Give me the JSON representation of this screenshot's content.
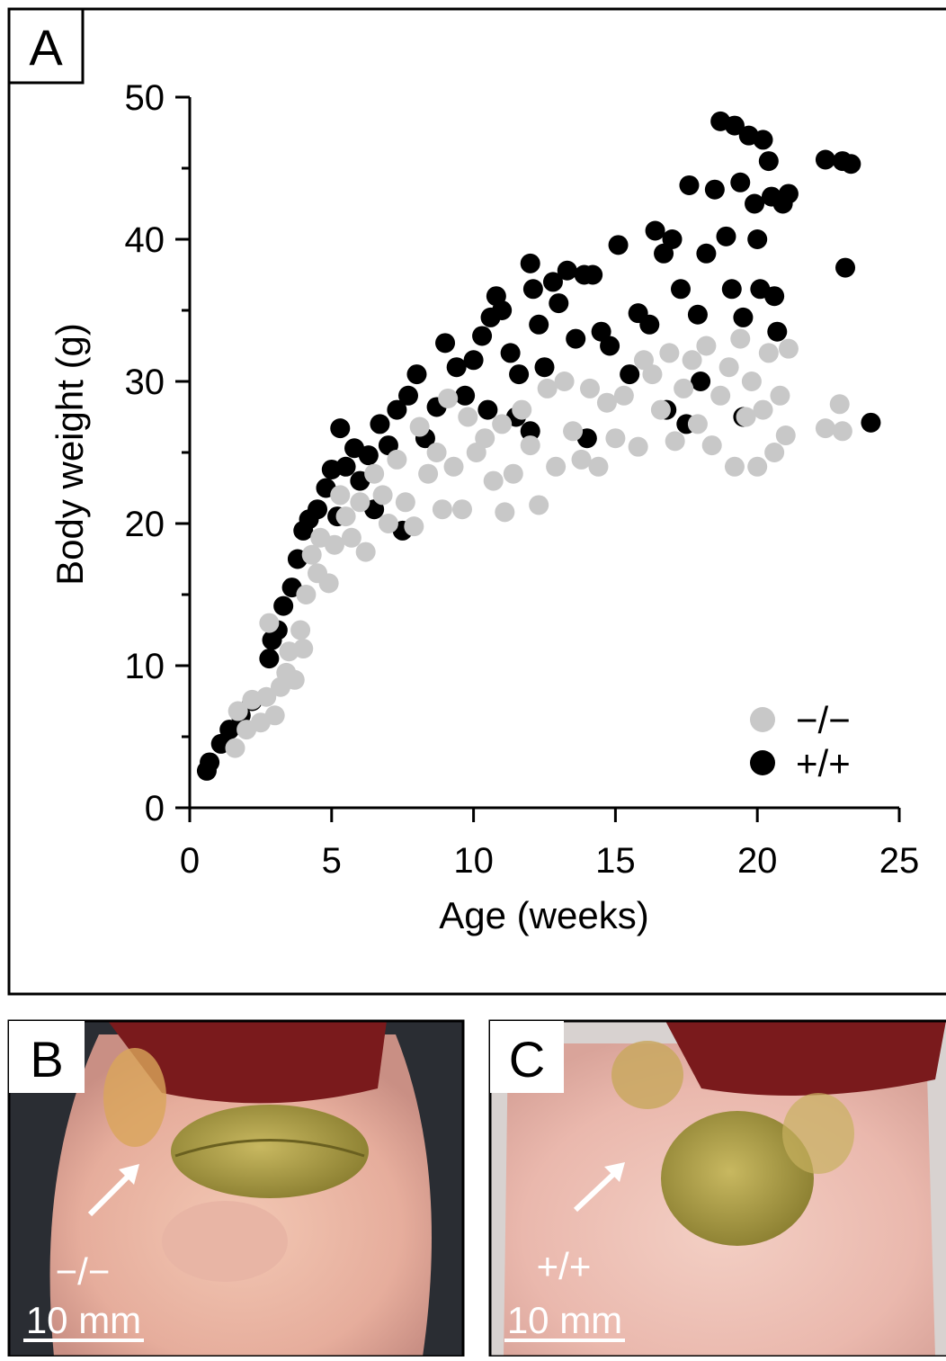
{
  "chart_data": {
    "type": "scatter",
    "panel_label": "A",
    "x_label": "Age (weeks)",
    "y_label": "Body weight (g)",
    "xlim": [
      0,
      25
    ],
    "xticks": [
      0,
      5,
      10,
      15,
      20,
      25
    ],
    "ylim": [
      0,
      50
    ],
    "yticks": [
      0,
      10,
      20,
      30,
      40,
      50
    ],
    "yminorticks": [
      5,
      15,
      25,
      35,
      45
    ],
    "legend": "lower right",
    "series": [
      {
        "name": "−/−",
        "color": "#c8c8c8",
        "x": [
          1.6,
          1.7,
          2.0,
          2.2,
          2.5,
          2.7,
          2.8,
          3.0,
          3.2,
          3.4,
          3.5,
          3.7,
          3.9,
          4.0,
          4.1,
          4.3,
          4.5,
          4.6,
          4.9,
          5.1,
          5.3,
          5.5,
          5.7,
          6.0,
          6.2,
          6.5,
          6.8,
          7.0,
          7.3,
          7.6,
          7.9,
          8.1,
          8.4,
          8.7,
          8.9,
          9.1,
          9.3,
          9.6,
          9.8,
          10.1,
          10.4,
          10.7,
          11.0,
          11.1,
          11.4,
          11.7,
          12.0,
          12.3,
          12.6,
          12.9,
          13.2,
          13.5,
          13.8,
          14.1,
          14.4,
          14.7,
          15.0,
          15.3,
          15.8,
          16.0,
          16.3,
          16.6,
          16.9,
          17.1,
          17.4,
          17.7,
          17.9,
          18.2,
          18.4,
          18.7,
          19.0,
          19.2,
          19.4,
          19.6,
          19.8,
          20.0,
          20.2,
          20.4,
          20.6,
          20.8,
          21.0,
          21.1,
          22.4,
          22.9,
          23.0
        ],
        "values": [
          4.2,
          6.8,
          5.5,
          7.6,
          6.0,
          7.8,
          13.0,
          6.5,
          8.5,
          9.5,
          11.0,
          9.0,
          12.5,
          11.2,
          15.0,
          17.8,
          16.5,
          19.0,
          15.8,
          18.5,
          22.0,
          20.5,
          19.0,
          21.5,
          18.0,
          23.5,
          22.0,
          20.0,
          24.5,
          21.5,
          19.8,
          26.8,
          23.5,
          25.0,
          21.0,
          28.8,
          24.0,
          21.0,
          27.5,
          25.0,
          26.0,
          23.0,
          27.0,
          20.8,
          23.5,
          28.0,
          25.5,
          21.3,
          29.5,
          24.0,
          30.0,
          26.5,
          24.5,
          29.5,
          24.0,
          28.5,
          26.0,
          29.0,
          25.4,
          31.5,
          30.5,
          28.0,
          32.0,
          25.8,
          29.5,
          31.5,
          27.0,
          32.5,
          25.5,
          29.0,
          31.0,
          24.0,
          33.0,
          27.5,
          30.0,
          24.0,
          28.0,
          32.0,
          25.0,
          29.0,
          26.2,
          32.3,
          26.7,
          28.4,
          26.5
        ]
      },
      {
        "name": "+/+",
        "color": "#000000",
        "x": [
          0.6,
          0.7,
          1.1,
          1.4,
          1.8,
          2.2,
          2.8,
          2.9,
          3.1,
          3.3,
          3.6,
          3.8,
          4.0,
          4.2,
          4.5,
          4.8,
          5.0,
          5.3,
          5.5,
          5.8,
          6.0,
          6.3,
          6.7,
          7.0,
          7.3,
          7.7,
          8.0,
          8.3,
          8.7,
          9.0,
          9.4,
          9.7,
          10.0,
          10.3,
          10.6,
          10.8,
          11.0,
          11.3,
          11.6,
          12.0,
          12.1,
          12.3,
          12.5,
          12.8,
          13.0,
          13.3,
          13.6,
          13.9,
          14.2,
          14.5,
          14.8,
          15.1,
          15.5,
          15.8,
          16.2,
          16.4,
          16.7,
          17.0,
          17.3,
          17.6,
          17.9,
          18.2,
          18.5,
          18.7,
          18.9,
          19.1,
          19.2,
          19.4,
          19.5,
          19.7,
          19.9,
          20.0,
          20.1,
          20.2,
          20.4,
          20.5,
          20.6,
          20.7,
          20.9,
          21.1,
          18.0,
          16.8,
          14.0,
          12.0,
          22.4,
          23.0,
          23.3,
          23.1,
          24.0,
          10.5,
          11.5,
          6.5,
          5.2,
          7.5,
          17.5,
          19.5
        ],
        "values": [
          2.6,
          3.2,
          4.5,
          5.5,
          6.5,
          7.5,
          10.5,
          11.8,
          12.5,
          14.2,
          15.5,
          17.5,
          19.5,
          20.3,
          21.0,
          22.5,
          23.8,
          26.7,
          24.0,
          25.3,
          23.0,
          24.8,
          27.0,
          25.5,
          28.0,
          29.0,
          30.5,
          26.0,
          28.2,
          32.7,
          31.0,
          29.0,
          31.5,
          33.2,
          34.5,
          36.0,
          35.0,
          32.0,
          30.5,
          38.3,
          36.5,
          34.0,
          31.0,
          37.0,
          35.5,
          37.8,
          33.0,
          37.5,
          37.5,
          33.5,
          32.5,
          39.6,
          30.5,
          34.8,
          34.0,
          40.6,
          39.0,
          40.0,
          36.5,
          43.8,
          34.7,
          39.0,
          43.5,
          48.3,
          40.2,
          36.5,
          48.0,
          44.0,
          34.5,
          47.3,
          42.5,
          40.0,
          36.5,
          47.0,
          45.5,
          43.0,
          36.0,
          33.5,
          42.5,
          43.2,
          30.0,
          28.0,
          26.0,
          26.5,
          45.6,
          45.5,
          45.3,
          38.0,
          27.1,
          28.0,
          27.5,
          21.0,
          20.5,
          19.5,
          27.0,
          27.5
        ]
      }
    ]
  },
  "panels": [
    {
      "label": "B",
      "genotype": "−/−",
      "scale": "10 mm"
    },
    {
      "label": "C",
      "genotype": "+/+",
      "scale": "10 mm"
    }
  ]
}
